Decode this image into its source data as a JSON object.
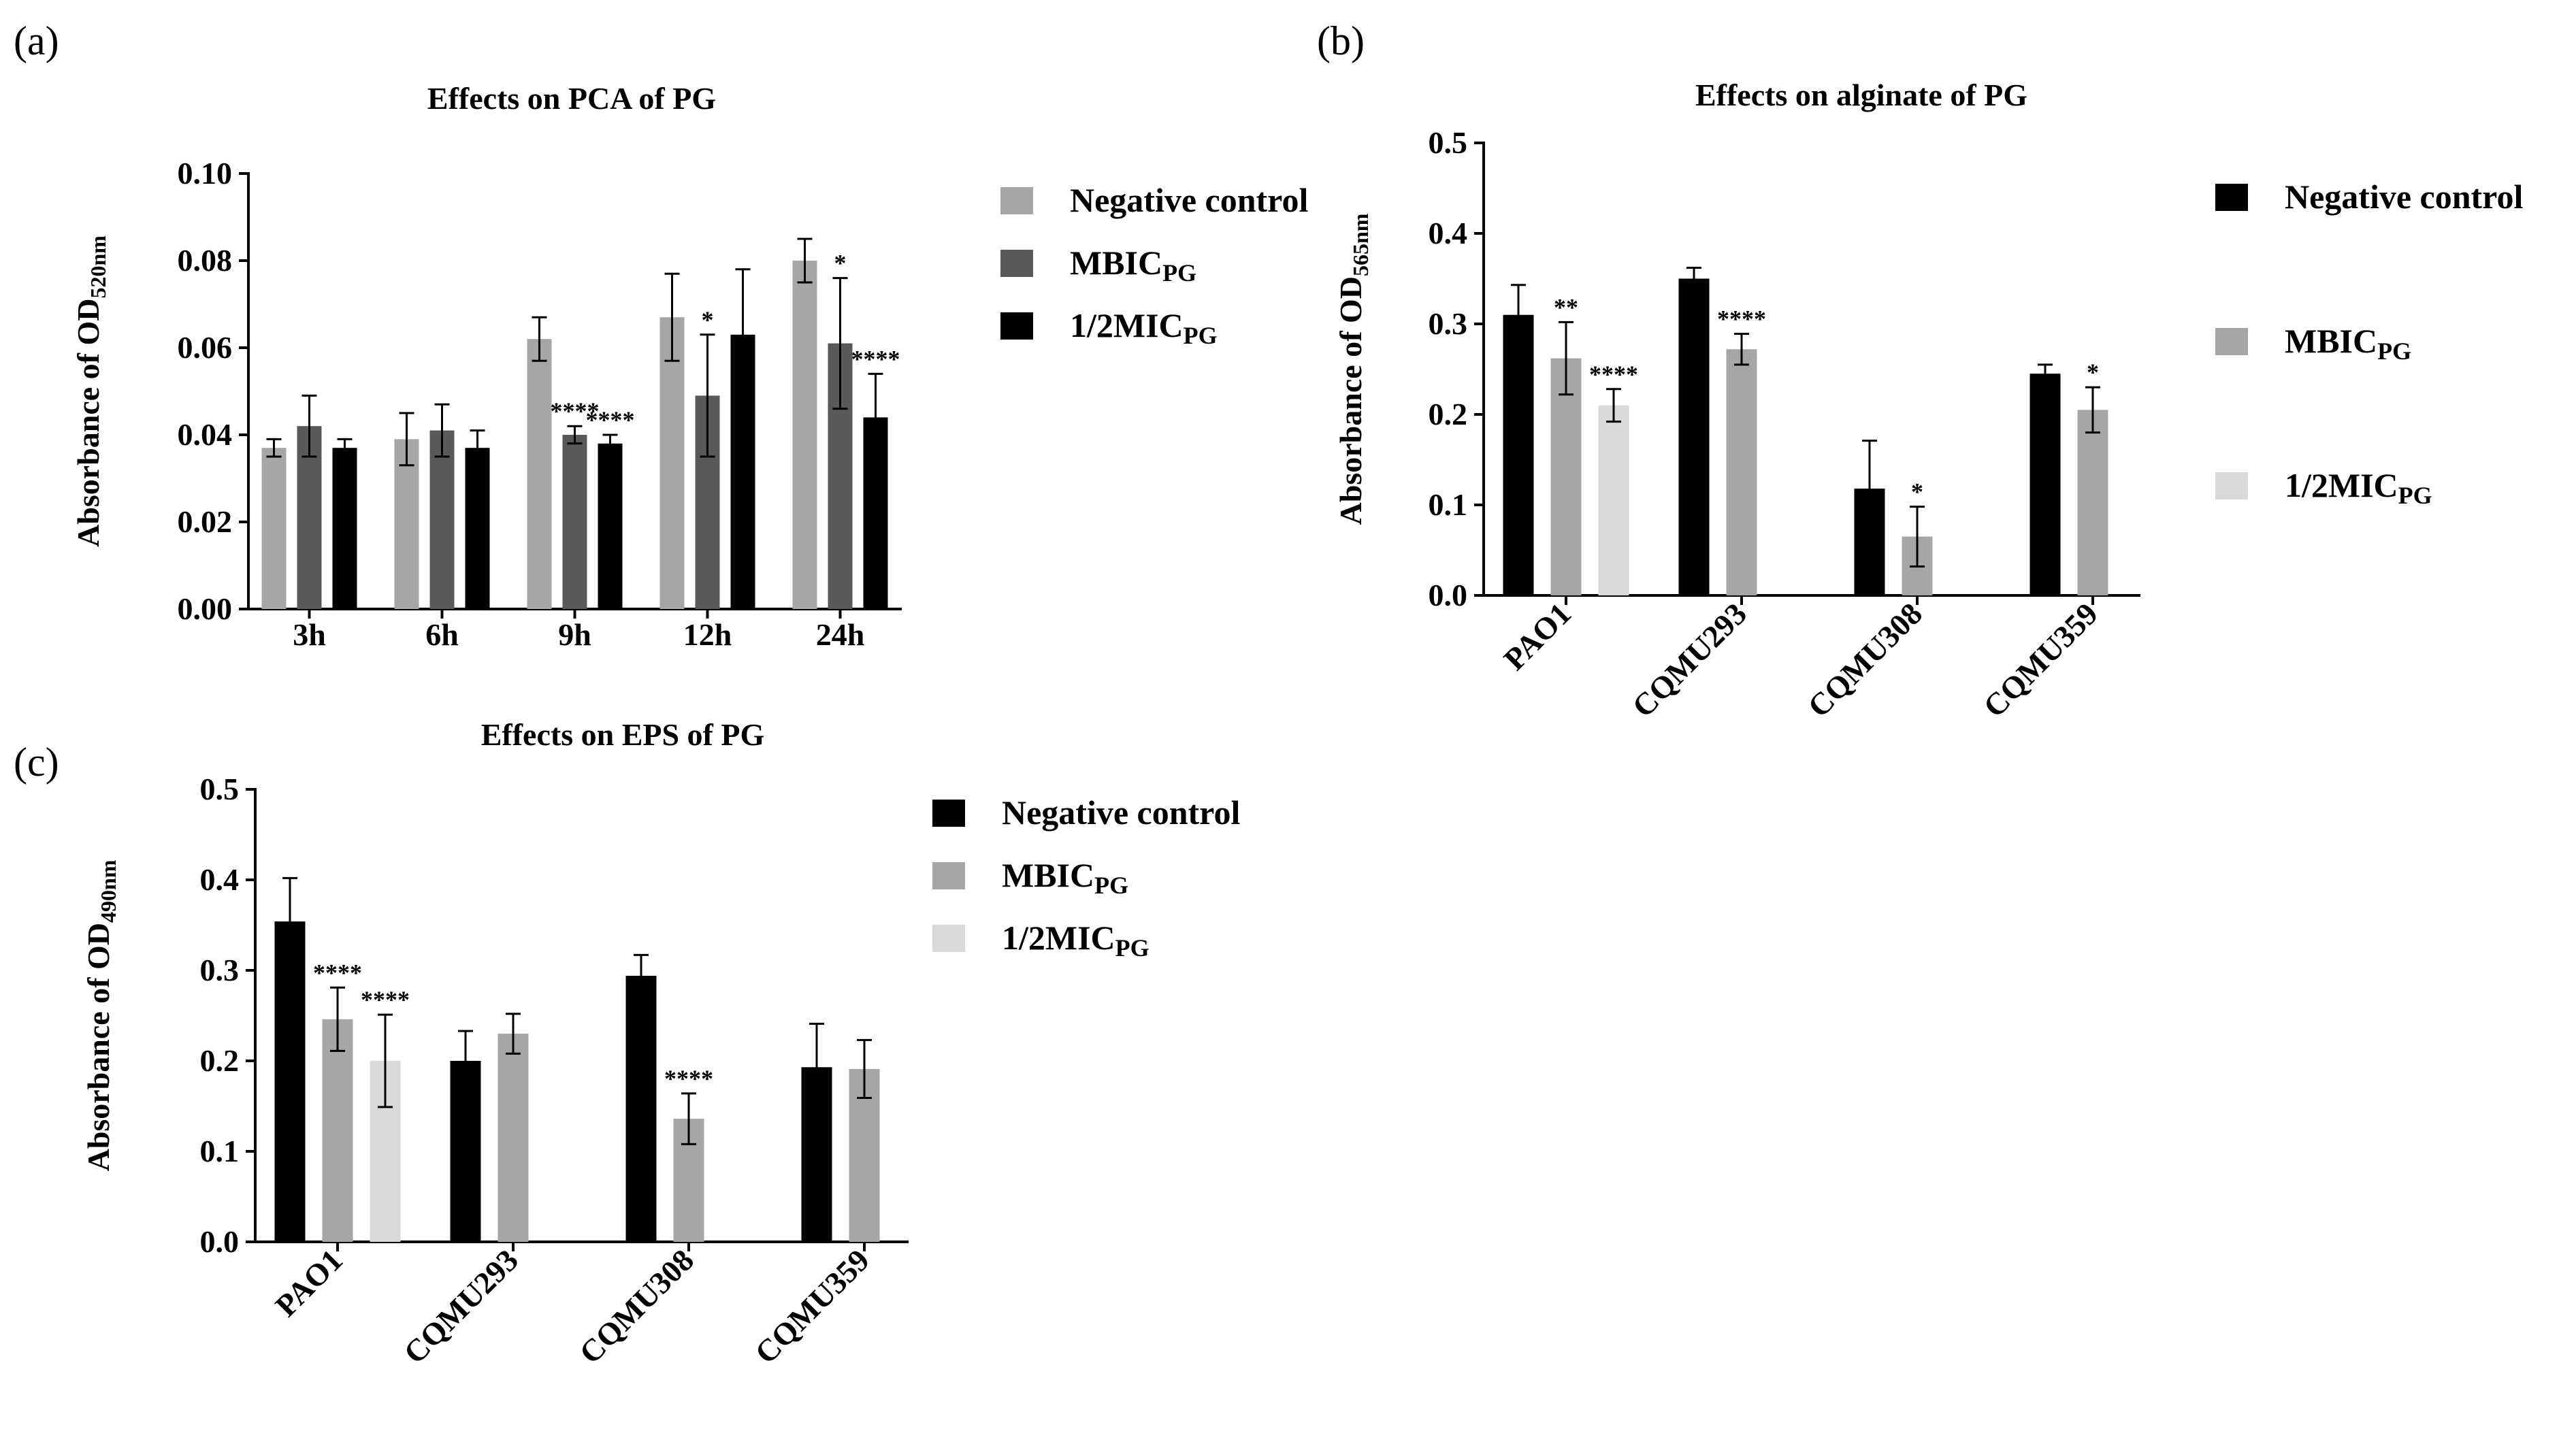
{
  "chart_data": [
    {
      "id": "a",
      "panel_label": "(a)",
      "type": "bar",
      "title": "Effects on  PCA of PG",
      "ylabel": "Absorbance of OD",
      "ylabel_sub": "520nm",
      "xlabel": "",
      "ylim": [
        0,
        0.1
      ],
      "yticks": [
        "0.00",
        "0.02",
        "0.04",
        "0.06",
        "0.08",
        "0.10"
      ],
      "categories": [
        "3h",
        "6h",
        "9h",
        "12h",
        "24h"
      ],
      "rotate_ticks": false,
      "legend_position": "right",
      "series": [
        {
          "name": "Negative control",
          "name_sub": "",
          "color": "#a6a6a6",
          "values": [
            0.037,
            0.039,
            0.062,
            0.067,
            0.08
          ],
          "errors": [
            0.002,
            0.006,
            0.005,
            0.01,
            0.005
          ],
          "sig": [
            "",
            "",
            "",
            "",
            ""
          ]
        },
        {
          "name": "MBIC",
          "name_sub": "PG",
          "color": "#595959",
          "values": [
            0.042,
            0.041,
            0.04,
            0.049,
            0.061
          ],
          "errors": [
            0.007,
            0.006,
            0.002,
            0.014,
            0.015
          ],
          "sig": [
            "",
            "",
            "****",
            "*",
            "*"
          ]
        },
        {
          "name": "1/2MIC",
          "name_sub": "PG",
          "color": "#000000",
          "values": [
            0.037,
            0.037,
            0.038,
            0.063,
            0.044
          ],
          "errors": [
            0.002,
            0.004,
            0.002,
            0.015,
            0.01
          ],
          "sig": [
            "",
            "",
            "****",
            "",
            "****"
          ]
        }
      ]
    },
    {
      "id": "b",
      "panel_label": "(b)",
      "type": "bar",
      "title": "Effects on  alginate of PG",
      "ylabel": "Absorbance of OD",
      "ylabel_sub": "565nm",
      "xlabel": "",
      "ylim": [
        0,
        0.5
      ],
      "yticks": [
        "0.0",
        "0.1",
        "0.2",
        "0.3",
        "0.4",
        "0.5"
      ],
      "categories": [
        "PAO1",
        "CQMU293",
        "CQMU308",
        "CQMU359"
      ],
      "rotate_ticks": true,
      "legend_position": "right",
      "series": [
        {
          "name": "Negative control",
          "name_sub": "",
          "color": "#000000",
          "values": [
            0.31,
            0.35,
            0.118,
            0.245
          ],
          "errors": [
            0.033,
            0.012,
            0.053,
            0.01
          ],
          "sig": [
            "",
            "",
            "",
            ""
          ]
        },
        {
          "name": "MBIC",
          "name_sub": "PG",
          "color": "#a6a6a6",
          "values": [
            0.262,
            0.272,
            0.065,
            0.205
          ],
          "errors": [
            0.04,
            0.017,
            0.033,
            0.025
          ],
          "sig": [
            "**",
            "****",
            "*",
            "*"
          ]
        },
        {
          "name": "1/2MIC",
          "name_sub": "PG",
          "color": "#d9d9d9",
          "values": [
            0.21,
            null,
            null,
            null
          ],
          "errors": [
            0.018,
            null,
            null,
            null
          ],
          "sig": [
            "****",
            "",
            "",
            ""
          ]
        }
      ]
    },
    {
      "id": "c",
      "panel_label": "(c)",
      "type": "bar",
      "title": "Effects on EPS of PG",
      "ylabel": "Absorbance of OD",
      "ylabel_sub": "490nm",
      "xlabel": "",
      "ylim": [
        0,
        0.5
      ],
      "yticks": [
        "0.0",
        "0.1",
        "0.2",
        "0.3",
        "0.4",
        "0.5"
      ],
      "categories": [
        "PAO1",
        "CQMU293",
        "CQMU308",
        "CQMU359"
      ],
      "rotate_ticks": true,
      "legend_position": "right",
      "series": [
        {
          "name": "Negative control",
          "name_sub": "",
          "color": "#000000",
          "values": [
            0.354,
            0.2,
            0.294,
            0.193
          ],
          "errors": [
            0.048,
            0.033,
            0.023,
            0.048
          ],
          "sig": [
            "",
            "",
            "",
            ""
          ]
        },
        {
          "name": "MBIC",
          "name_sub": "PG",
          "color": "#a6a6a6",
          "values": [
            0.246,
            0.23,
            0.136,
            0.191
          ],
          "errors": [
            0.035,
            0.022,
            0.028,
            0.032
          ],
          "sig": [
            "****",
            "",
            "****",
            ""
          ]
        },
        {
          "name": "1/2MIC",
          "name_sub": "PG",
          "color": "#d9d9d9",
          "values": [
            0.2,
            null,
            null,
            null
          ],
          "errors": [
            0.051,
            null,
            null,
            null
          ],
          "sig": [
            "****",
            "",
            "",
            ""
          ]
        }
      ]
    }
  ]
}
